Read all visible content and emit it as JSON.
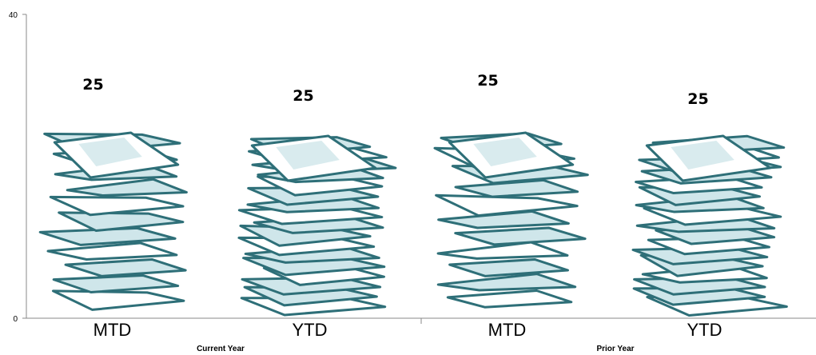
{
  "chart_data": {
    "type": "bar",
    "groups": [
      "Current Year",
      "Prior Year"
    ],
    "categories": [
      "MTD",
      "YTD",
      "MTD",
      "YTD"
    ],
    "values": [
      25,
      25,
      25,
      25
    ],
    "data_labels": [
      "25",
      "25",
      "25",
      "25"
    ],
    "ylim": [
      0,
      40
    ],
    "yticks": [
      "0",
      "40"
    ],
    "grid": false,
    "legend": "none",
    "mark_style": "stacked-paper pictograph",
    "colors": {
      "paper_fill": "#cfe6ea",
      "paper_edge": "#2e6f78",
      "paper_light": "#ffffff",
      "axis": "#888888"
    }
  }
}
